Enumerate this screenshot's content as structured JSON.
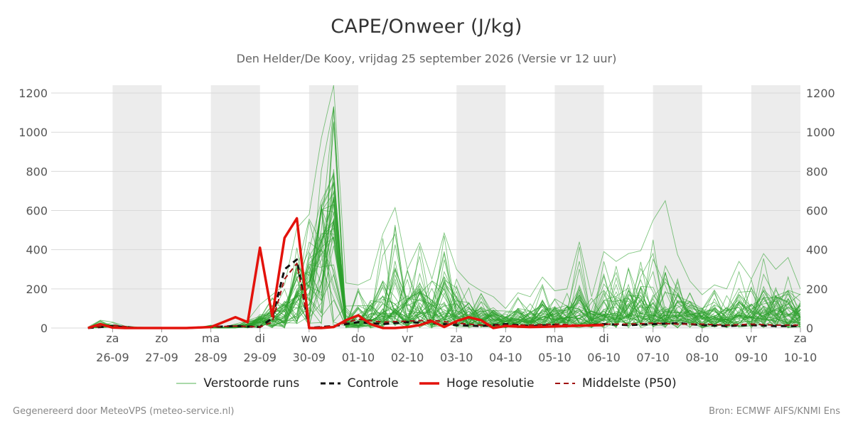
{
  "title": "CAPE/Onweer (J/kg)",
  "subtitle": "Den Helder/De Kooy, vrijdag 25 september 2026 (Versie vr 12 uur)",
  "footer": {
    "left": "Gegenereerd door MeteoVPS (meteo-service.nl)",
    "right": "Bron: ECMWF AIFS/KNMI Ens"
  },
  "colors": {
    "ensemble": "#2ca02c",
    "control": "#111111",
    "high_res": "#e3120b",
    "median": "#a01010",
    "weekend_band": "#ececec",
    "grid": "#d9d9d9"
  },
  "chart_data": {
    "type": "line",
    "title": "CAPE/Onweer (J/kg)",
    "subtitle": "Den Helder/De Kooy, vrijdag 25 september 2026 (Versie vr 12 uur)",
    "x_unit": "days from 25-09 00:00",
    "xlim": [
      -0.25,
      15.0
    ],
    "ylim": [
      0,
      1240
    ],
    "yticks": [
      0,
      200,
      400,
      600,
      800,
      1000,
      1200
    ],
    "grid": true,
    "legend_position": "bottom",
    "x_ticks": [
      {
        "x": 1,
        "day": "za",
        "date": "26-09"
      },
      {
        "x": 2,
        "day": "zo",
        "date": "27-09"
      },
      {
        "x": 3,
        "day": "ma",
        "date": "28-09"
      },
      {
        "x": 4,
        "day": "di",
        "date": "29-09"
      },
      {
        "x": 5,
        "day": "wo",
        "date": "30-09"
      },
      {
        "x": 6,
        "day": "do",
        "date": "01-10"
      },
      {
        "x": 7,
        "day": "vr",
        "date": "02-10"
      },
      {
        "x": 8,
        "day": "za",
        "date": "03-10"
      },
      {
        "x": 9,
        "day": "zo",
        "date": "04-10"
      },
      {
        "x": 10,
        "day": "ma",
        "date": "05-10"
      },
      {
        "x": 11,
        "day": "di",
        "date": "06-10"
      },
      {
        "x": 12,
        "day": "wo",
        "date": "07-10"
      },
      {
        "x": 13,
        "day": "do",
        "date": "08-10"
      },
      {
        "x": 14,
        "day": "vr",
        "date": "09-10"
      },
      {
        "x": 15,
        "day": "za",
        "date": "10-10"
      }
    ],
    "shaded_days": [
      1,
      3,
      5,
      8,
      10,
      12,
      14
    ],
    "series": [
      {
        "name": "Hoge resolutie",
        "x": [
          0.5,
          0.75,
          1.0,
          1.25,
          1.5,
          2.0,
          2.5,
          3.0,
          3.25,
          3.5,
          3.75,
          4.0,
          4.25,
          4.5,
          4.75,
          5.0,
          5.25,
          5.5,
          5.75,
          6.0,
          6.25,
          6.5,
          6.75,
          7.0,
          7.25,
          7.5,
          7.75,
          8.0,
          8.25,
          8.5,
          8.75,
          9.0,
          9.5,
          10.0,
          10.5,
          11.0
        ],
        "values": [
          0,
          20,
          2,
          0,
          0,
          0,
          0,
          5,
          30,
          55,
          30,
          410,
          60,
          460,
          560,
          0,
          0,
          5,
          40,
          65,
          20,
          0,
          0,
          5,
          15,
          35,
          5,
          35,
          55,
          40,
          0,
          10,
          5,
          8,
          12,
          15
        ]
      },
      {
        "name": "Controle",
        "x": [
          0.5,
          1.0,
          1.5,
          2.0,
          2.5,
          3.0,
          3.5,
          4.0,
          4.25,
          4.5,
          4.75,
          5.0,
          5.5,
          6.0,
          6.5,
          7.0,
          7.5,
          8.0,
          8.5,
          9.0,
          9.5,
          10.0,
          10.5,
          11.0,
          11.5,
          12.0,
          12.5,
          13.0,
          13.5,
          14.0,
          14.5,
          15.0
        ],
        "values": [
          0,
          10,
          0,
          0,
          0,
          5,
          10,
          5,
          50,
          300,
          350,
          0,
          10,
          30,
          20,
          30,
          25,
          15,
          10,
          20,
          10,
          15,
          10,
          20,
          15,
          20,
          25,
          15,
          10,
          15,
          10,
          10
        ]
      },
      {
        "name": "Middelste (P50)",
        "x": [
          0.5,
          1.0,
          1.5,
          2.0,
          2.5,
          3.0,
          3.5,
          4.0,
          4.25,
          4.5,
          4.75,
          5.0,
          5.5,
          6.0,
          6.5,
          7.0,
          7.5,
          8.0,
          8.5,
          9.0,
          9.5,
          10.0,
          10.5,
          11.0,
          11.5,
          12.0,
          12.5,
          13.0,
          13.5,
          14.0,
          14.5,
          15.0
        ],
        "values": [
          0,
          15,
          0,
          0,
          0,
          5,
          10,
          5,
          30,
          250,
          330,
          0,
          10,
          45,
          30,
          35,
          40,
          25,
          15,
          15,
          15,
          20,
          15,
          20,
          20,
          25,
          20,
          20,
          15,
          20,
          15,
          15
        ]
      }
    ],
    "ensemble": {
      "name": "Verstoorde runs",
      "members": 50,
      "x_start": 0.5,
      "x_step": 0.25,
      "envelope_high": [
        5,
        40,
        30,
        10,
        5,
        3,
        3,
        3,
        3,
        3,
        15,
        5,
        20,
        40,
        120,
        170,
        220,
        510,
        580,
        970,
        1240,
        230,
        220,
        250,
        480,
        615,
        300,
        435,
        250,
        485,
        300,
        230,
        190,
        160,
        100,
        180,
        160,
        260,
        190,
        200,
        440,
        160,
        390,
        340,
        380,
        395,
        550,
        650,
        375,
        240,
        170,
        220,
        200,
        340,
        250,
        380,
        300,
        360,
        200,
        460
      ],
      "envelope_median": [
        0,
        15,
        5,
        2,
        0,
        0,
        0,
        0,
        0,
        0,
        2,
        0,
        5,
        10,
        30,
        40,
        60,
        150,
        200,
        400,
        520,
        20,
        30,
        40,
        70,
        80,
        50,
        70,
        60,
        80,
        60,
        50,
        40,
        40,
        30,
        40,
        30,
        50,
        40,
        50,
        60,
        40,
        60,
        60,
        60,
        70,
        70,
        80,
        70,
        60,
        50,
        50,
        40,
        60,
        50,
        60,
        60,
        60,
        50,
        80
      ]
    }
  },
  "legend": [
    {
      "label": "Verstoorde runs",
      "key": "ensemble"
    },
    {
      "label": "Controle",
      "key": "control"
    },
    {
      "label": "Hoge resolutie",
      "key": "high_res"
    },
    {
      "label": "Middelste (P50)",
      "key": "median"
    }
  ]
}
